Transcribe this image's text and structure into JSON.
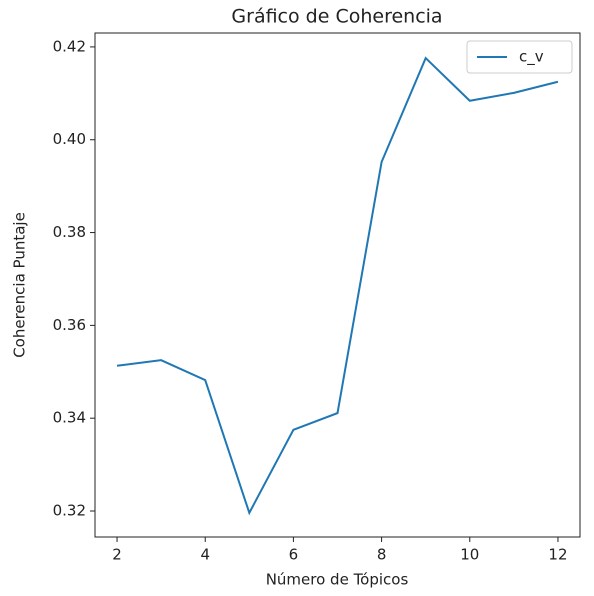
{
  "chart_data": {
    "type": "line",
    "title": "Gráfico de Coherencia",
    "x_label": "Número de Tópicos",
    "y_label": "Coherencia Puntaje",
    "x": [
      2,
      3,
      4,
      5,
      6,
      7,
      8,
      9,
      10,
      11,
      12
    ],
    "series": [
      {
        "name": "c_v",
        "color": "#1f77b4",
        "values": [
          0.3513,
          0.3525,
          0.3482,
          0.3196,
          0.3375,
          0.3411,
          0.3952,
          0.4176,
          0.4084,
          0.4101,
          0.4125
        ]
      }
    ],
    "xlim": [
      1.5,
      12.5
    ],
    "xticks": [
      2,
      4,
      6,
      8,
      10,
      12
    ],
    "ylim": [
      0.3144,
      0.423
    ],
    "yticks": [
      0.32,
      0.34,
      0.36,
      0.38,
      {
        "value": 0.4,
        "label": "0.40"
      },
      0.42
    ],
    "legend": "upper right"
  }
}
